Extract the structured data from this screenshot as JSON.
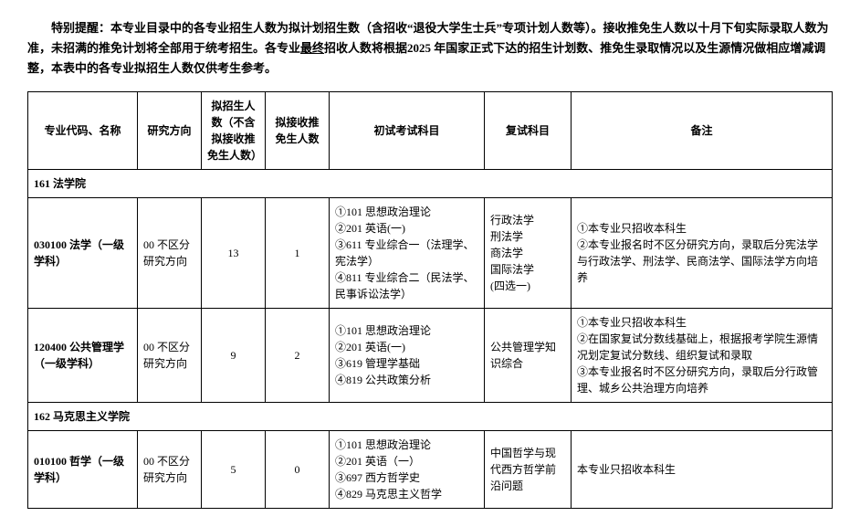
{
  "notice": {
    "line1_prefix": "特别提醒：本专业目录中的各专业招生人数为拟计划招生数（含招收“退役大学生士兵”专项计划人数等）。接收推免生人数以十月下旬实际录取人数为准，未招满的推免计划将全部用于统考招生。各专业",
    "underline": "最终",
    "line1_suffix": "招收人数将根据2025 年国家正式下达的招生计划数、推免生录取情况以及生源情况做相应增减调整，本表中的各专业拟招生人数仅供考生参考。"
  },
  "headers": {
    "code": "专业代码、名称",
    "direction": "研究方向",
    "plan": "拟招生人数（不含拟接收推免生人数）",
    "recommend": "拟接收推免生人数",
    "exam": "初试考试科目",
    "reexam": "复试科目",
    "note": "备注"
  },
  "sections": [
    {
      "title": "161 法学院",
      "rows": [
        {
          "code": "030100 法学（一级学科）",
          "direction": "00 不区分研究方向",
          "plan": "13",
          "recommend": "1",
          "exam": "①101 思想政治理论\n②201 英语(一)\n③611 专业综合一（法理学、宪法学）\n④811 专业综合二（民法学、民事诉讼法学）",
          "reexam": "行政法学\n刑法学\n商法学\n国际法学\n(四选一)",
          "note": "①本专业只招收本科生\n②本专业报名时不区分研究方向，录取后分宪法学与行政法学、刑法学、民商法学、国际法学方向培养"
        },
        {
          "code": "120400 公共管理学（一级学科）",
          "direction": "00 不区分研究方向",
          "plan": "9",
          "recommend": "2",
          "exam": "①101 思想政治理论\n②201 英语(一)\n③619 管理学基础\n④819 公共政策分析",
          "reexam": "公共管理学知识综合",
          "note": "①本专业只招收本科生\n②在国家复试分数线基础上，根据报考学院生源情况划定复试分数线、组织复试和录取\n③本专业报名时不区分研究方向，录取后分行政管理、城乡公共治理方向培养"
        }
      ]
    },
    {
      "title": "162 马克思主义学院",
      "rows": [
        {
          "code": "010100 哲学（一级学科）",
          "direction": "00 不区分研究方向",
          "plan": "5",
          "recommend": "0",
          "exam": "①101 思想政治理论\n②201 英语（一）\n③697 西方哲学史\n④829 马克思主义哲学",
          "reexam": "中国哲学与现代西方哲学前沿问题",
          "note": "本专业只招收本科生"
        }
      ]
    }
  ]
}
